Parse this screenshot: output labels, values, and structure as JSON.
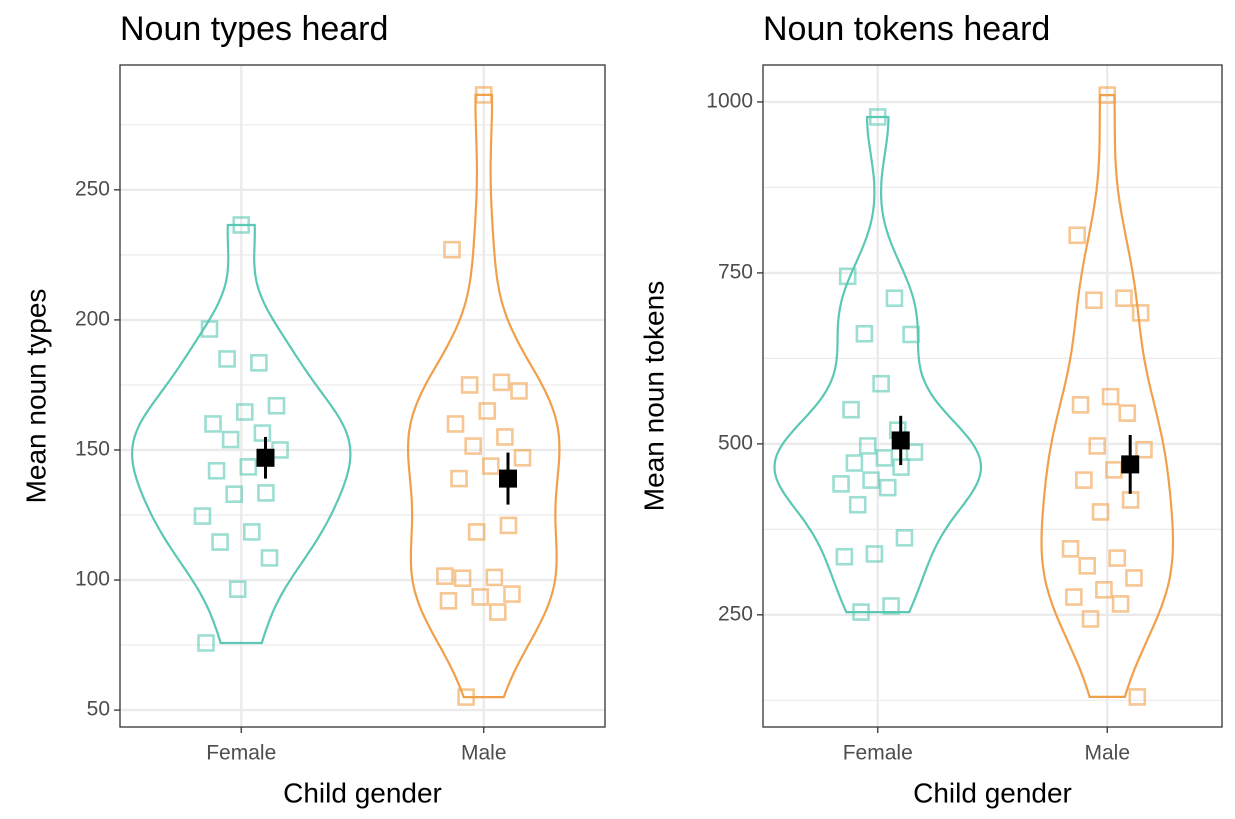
{
  "chart_data": [
    {
      "type": "violin",
      "title": "Noun types heard",
      "x_label": "Child gender",
      "y_label": "Mean noun types",
      "categories": [
        "Female",
        "Male"
      ],
      "colors": [
        "#5ac8b4",
        "#f0a04b"
      ],
      "values": [
        [
          236.5,
          196.5,
          183.5,
          185,
          167,
          164.6,
          160,
          156.5,
          154,
          150,
          143.5,
          142,
          133.5,
          133,
          124.6,
          118.5,
          114.6,
          108.5,
          96.5,
          75.8
        ],
        [
          286.5,
          227,
          176,
          175,
          172.7,
          165,
          160,
          155,
          151.5,
          147,
          143.8,
          139,
          121,
          118.5,
          101.5,
          101,
          100.7,
          94.6,
          93.5,
          92,
          87.7,
          55
        ]
      ],
      "means": [
        147,
        139
      ],
      "errors": [
        8,
        10
      ],
      "ylim": [
        43.5,
        298
      ],
      "yticks": [
        50,
        100,
        150,
        200,
        250
      ],
      "grid": true
    },
    {
      "type": "violin",
      "title": "Noun tokens heard",
      "x_label": "Child gender",
      "y_label": "Mean noun tokens",
      "categories": [
        "Female",
        "Male"
      ],
      "colors": [
        "#5ac8b4",
        "#f0a04b"
      ],
      "values": [
        [
          978,
          745,
          713,
          661,
          660,
          588,
          550,
          520,
          497,
          488,
          479.5,
          472,
          466,
          447,
          441.5,
          436,
          411,
          362.6,
          339,
          335,
          263,
          254
        ],
        [
          1010,
          805,
          713,
          710,
          691.5,
          569,
          557,
          545,
          497,
          491.5,
          462,
          447,
          418,
          400.5,
          346.5,
          333,
          321.6,
          304,
          286.6,
          276,
          266,
          244,
          130
        ]
      ],
      "means": [
        505,
        470
      ],
      "errors": [
        36,
        43
      ],
      "ylim": [
        86,
        1054
      ],
      "yticks": [
        250,
        500,
        750,
        1000
      ],
      "grid": true
    }
  ]
}
